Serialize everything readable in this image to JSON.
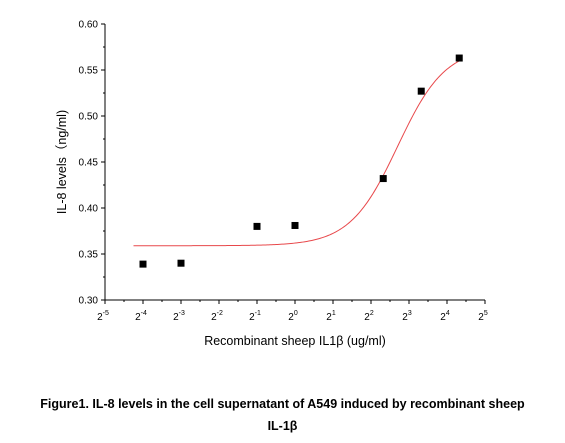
{
  "chart_data": {
    "type": "scatter",
    "xlabel": "Recombinant sheep IL1β (ug/ml)",
    "ylabel": "IL-8 levels（ng/ml)",
    "x_scale": "log2",
    "xlim_exponent": [
      -5,
      5
    ],
    "x_tick_base": "2",
    "x_tick_exponents": [
      "-5",
      "-4",
      "-3",
      "-2",
      "-1",
      "0",
      "1",
      "2",
      "3",
      "4",
      "5"
    ],
    "ylim": [
      0.3,
      0.6
    ],
    "y_ticks": [
      "0.30",
      "0.35",
      "0.40",
      "0.45",
      "0.50",
      "0.55",
      "0.60"
    ],
    "grid": false,
    "points": [
      {
        "x": 0.0625,
        "y": 0.339
      },
      {
        "x": 0.125,
        "y": 0.34
      },
      {
        "x": 0.5,
        "y": 0.38
      },
      {
        "x": 1,
        "y": 0.381
      },
      {
        "x": 5,
        "y": 0.432
      },
      {
        "x": 10,
        "y": 0.527
      },
      {
        "x": 20,
        "y": 0.563
      }
    ],
    "fit": {
      "bottom": 0.359,
      "top": 0.575,
      "ec50": 6.5,
      "hill": 2.3
    },
    "colors": {
      "points": "#000000",
      "fit_line": "#e8484b",
      "axes": "#000000"
    }
  },
  "caption": {
    "line1": "Figure1. IL-8 levels in the cell supernatant of A549 induced by recombinant sheep",
    "line2": "IL-1β"
  }
}
